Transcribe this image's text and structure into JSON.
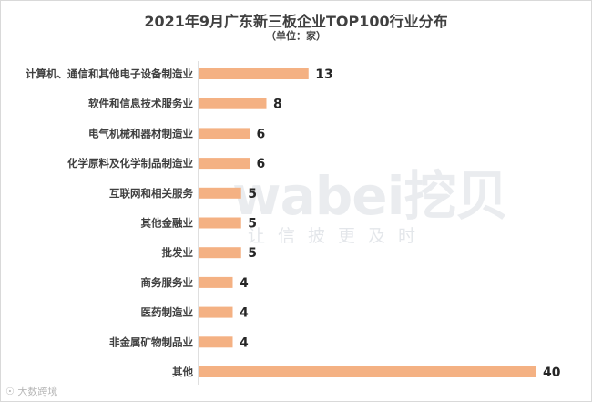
{
  "chart_data": {
    "type": "bar",
    "orientation": "horizontal",
    "title": "2021年9月广东新三板企业TOP100行业分布",
    "subtitle": "（单位：家）",
    "categories": [
      "计算机、通信和其他电子设备制造业",
      "软件和信息技术服务业",
      "电气机械和器材制造业",
      "化学原料及化学制品制造业",
      "互联网和相关服务",
      "其他金融业",
      "批发业",
      "商务服务业",
      "医药制造业",
      "非金属矿物制品业",
      "其他"
    ],
    "values": [
      13,
      8,
      6,
      6,
      5,
      5,
      5,
      4,
      4,
      4,
      40
    ],
    "xlim": [
      0,
      40
    ],
    "bar_color": "#f4b183",
    "grid": false,
    "legend": "none"
  },
  "watermark": {
    "text": "wabei挖贝",
    "sub": "让信披更及时"
  },
  "footer": {
    "icon_glyph": "☉",
    "text": "大数跨境"
  }
}
